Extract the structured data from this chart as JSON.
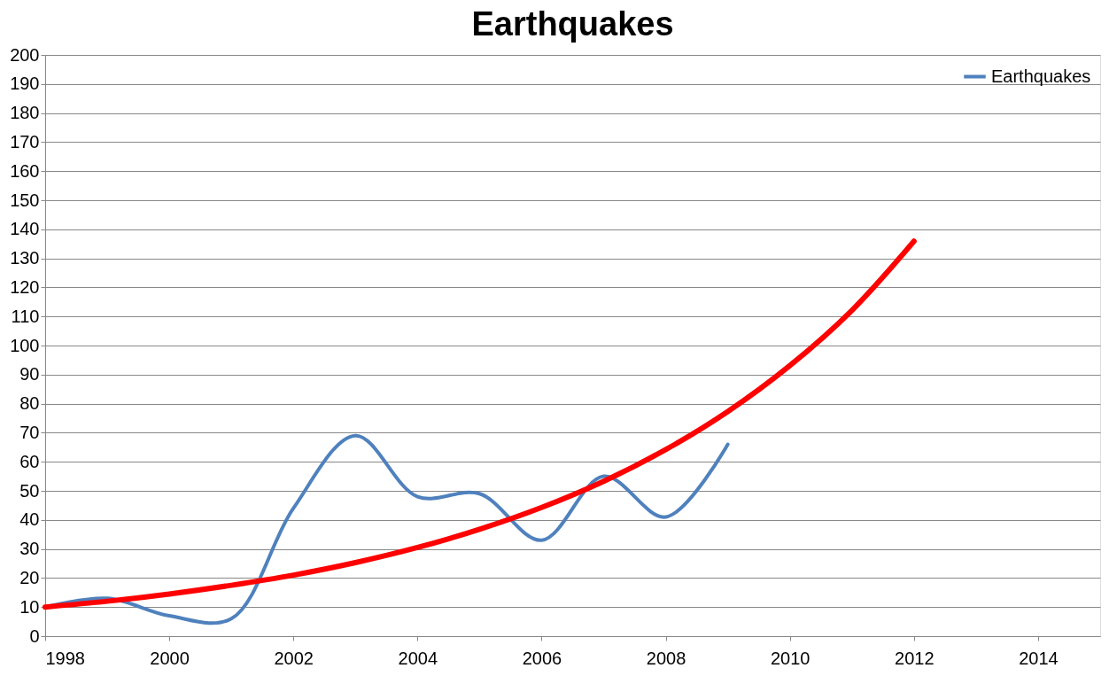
{
  "chart_data": {
    "type": "line",
    "title": "Earthquakes",
    "x": [
      1998,
      1999,
      2000,
      2001,
      2002,
      2003,
      2004,
      2005,
      2006,
      2007,
      2008,
      2009
    ],
    "series": [
      {
        "name": "Earthquakes",
        "color": "#4f81bd",
        "values": [
          10,
          13,
          7,
          6,
          44,
          69,
          48,
          49,
          33,
          55,
          41,
          66
        ]
      },
      {
        "type": "line",
        "color": "#ff0000",
        "x": [
          1998,
          1999,
          2000,
          2001,
          2002,
          2003,
          2004,
          2005,
          2006,
          2007,
          2008,
          2009,
          2010,
          2011,
          2012
        ],
        "values": [
          10,
          12,
          14.5,
          17.5,
          21,
          25.3,
          30.5,
          36.8,
          44.3,
          53.3,
          64.2,
          77.3,
          93.1,
          112.1,
          135.9
        ]
      }
    ],
    "xlim": [
      1998,
      2015
    ],
    "xticks": [
      1998,
      2000,
      2002,
      2004,
      2006,
      2008,
      2010,
      2012,
      2014
    ],
    "ylim": [
      0,
      200
    ],
    "yticks": [
      0,
      10,
      20,
      30,
      40,
      50,
      60,
      70,
      80,
      90,
      100,
      110,
      120,
      130,
      140,
      150,
      160,
      170,
      180,
      190,
      200
    ],
    "grid": "y",
    "legend": "top right",
    "marker": "none",
    "line_style": "solid"
  }
}
